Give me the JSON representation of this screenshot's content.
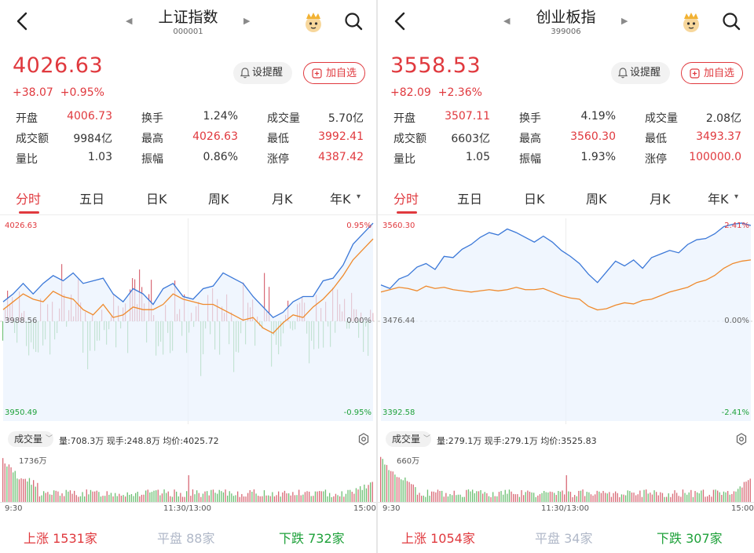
{
  "panels": [
    {
      "title": "上证指数",
      "code": "000001",
      "price": "4026.63",
      "change": "+38.07",
      "change_pct": "+0.95%",
      "alert_label": "设提醒",
      "add_label": "加自选",
      "stats": [
        {
          "label": "开盘",
          "value": "4006.73",
          "red": true
        },
        {
          "label": "换手",
          "value": "1.24%",
          "red": false
        },
        {
          "label": "成交量",
          "value": "5.70亿",
          "red": false
        },
        {
          "label": "成交额",
          "value": "9984亿",
          "red": false
        },
        {
          "label": "最高",
          "value": "4026.63",
          "red": true
        },
        {
          "label": "最低",
          "value": "3992.41",
          "red": true
        },
        {
          "label": "量比",
          "value": "1.03",
          "red": false
        },
        {
          "label": "振幅",
          "value": "0.86%",
          "red": false
        },
        {
          "label": "涨停",
          "value": "4387.42",
          "red": true
        }
      ],
      "tabs": [
        "分时",
        "五日",
        "日K",
        "周K",
        "月K",
        "年K"
      ],
      "axis": {
        "high": "4026.63",
        "mid": "3988.56",
        "low": "3950.49",
        "high_pct": "0.95%",
        "mid_pct": "0.00%",
        "low_pct": "-0.95%"
      },
      "volume": {
        "label": "成交量",
        "info": "量:708.3万  现手:248.8万  均价:4025.72",
        "max": "1736万",
        "t_start": "9:30",
        "t_mid": "11:30/13:00",
        "t_end": "15:00"
      },
      "breadth": {
        "up_label": "上涨",
        "up": "1531家",
        "flat_label": "平盘",
        "flat": "88家",
        "down_label": "下跌",
        "down": "732家"
      }
    },
    {
      "title": "创业板指",
      "code": "399006",
      "price": "3558.53",
      "change": "+82.09",
      "change_pct": "+2.36%",
      "alert_label": "设提醒",
      "add_label": "加自选",
      "stats": [
        {
          "label": "开盘",
          "value": "3507.11",
          "red": true
        },
        {
          "label": "换手",
          "value": "4.19%",
          "red": false
        },
        {
          "label": "成交量",
          "value": "2.08亿",
          "red": false
        },
        {
          "label": "成交额",
          "value": "6603亿",
          "red": false
        },
        {
          "label": "最高",
          "value": "3560.30",
          "red": true
        },
        {
          "label": "最低",
          "value": "3493.37",
          "red": true
        },
        {
          "label": "量比",
          "value": "1.05",
          "red": false
        },
        {
          "label": "振幅",
          "value": "1.93%",
          "red": false
        },
        {
          "label": "涨停",
          "value": "100000.0",
          "red": true
        }
      ],
      "tabs": [
        "分时",
        "五日",
        "日K",
        "周K",
        "月K",
        "年K"
      ],
      "axis": {
        "high": "3560.30",
        "mid": "3476.44",
        "low": "3392.58",
        "high_pct": "2.41%",
        "mid_pct": "0.00%",
        "low_pct": "-2.41%"
      },
      "volume": {
        "label": "成交量",
        "info": "量:279.1万  现手:279.1万  均价:3525.83",
        "max": "660万",
        "t_start": "9:30",
        "t_mid": "11:30/13:00",
        "t_end": "15:00"
      },
      "breadth": {
        "up_label": "上涨",
        "up": "1054家",
        "flat_label": "平盘",
        "flat": "34家",
        "down_label": "下跌",
        "down": "307家"
      }
    }
  ],
  "chart_data": [
    {
      "type": "line",
      "title": "上证指数",
      "ylim": [
        3950.49,
        4026.63
      ],
      "baseline": 3988.56,
      "series": [
        {
          "values": [
            3996,
            3999,
            4003,
            3999,
            4003,
            4006,
            4004,
            4007,
            4003,
            4004,
            4005,
            3999,
            3996,
            4001,
            3999,
            3995,
            4001,
            4003,
            3998,
            3997,
            4001,
            4002,
            4007,
            4005,
            4003,
            3998,
            3994,
            3990,
            3992,
            3996,
            3998,
            3998,
            4004,
            4005,
            4010,
            4018,
            4022,
            4026
          ]
        },
        {
          "values": [
            3993,
            3996,
            3999,
            3997,
            3996,
            4000,
            3998,
            3997,
            3993,
            3991,
            3995,
            3990,
            3991,
            3994,
            3993,
            3993,
            3995,
            3999,
            3997,
            3996,
            3995,
            3995,
            3993,
            3991,
            3989,
            3990,
            3986,
            3984,
            3988,
            3991,
            3990,
            3994,
            3997,
            4001,
            4006,
            4012,
            4016,
            4020
          ]
        }
      ]
    },
    {
      "type": "line",
      "title": "创业板指",
      "ylim": [
        3392.58,
        3560.3
      ],
      "baseline": 3476.44,
      "series": [
        {
          "values": [
            3507,
            3504,
            3512,
            3515,
            3522,
            3525,
            3520,
            3531,
            3530,
            3537,
            3541,
            3547,
            3551,
            3549,
            3554,
            3551,
            3547,
            3543,
            3548,
            3543,
            3536,
            3531,
            3525,
            3516,
            3509,
            3518,
            3527,
            3523,
            3528,
            3521,
            3530,
            3533,
            3536,
            3534,
            3541,
            3545,
            3546,
            3550,
            3556,
            3558,
            3559,
            3557
          ]
        },
        {
          "values": [
            3501,
            3503,
            3505,
            3504,
            3502,
            3506,
            3504,
            3505,
            3503,
            3502,
            3501,
            3502,
            3503,
            3502,
            3503,
            3505,
            3503,
            3503,
            3504,
            3501,
            3498,
            3496,
            3495,
            3489,
            3486,
            3487,
            3490,
            3492,
            3491,
            3494,
            3495,
            3498,
            3501,
            3503,
            3505,
            3509,
            3511,
            3515,
            3521,
            3525,
            3527,
            3528
          ]
        }
      ]
    }
  ]
}
